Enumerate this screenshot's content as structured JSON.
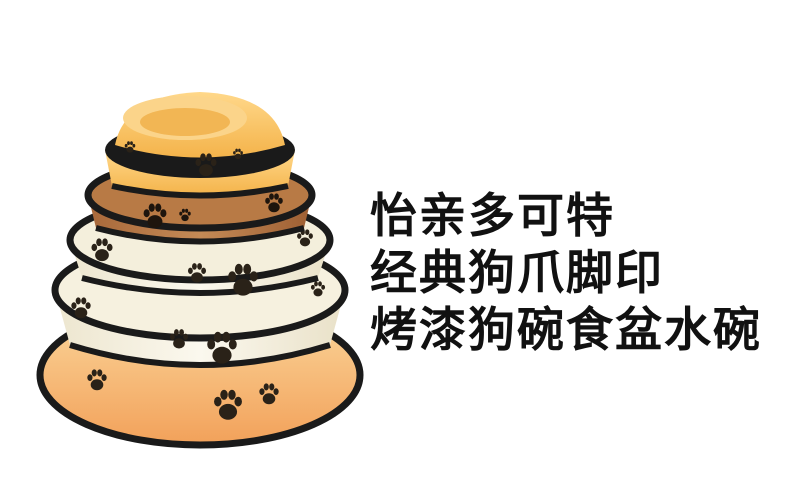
{
  "product_caption": {
    "lines": [
      "怡亲多可特",
      "经典狗爪脚印",
      "烤漆狗碗食盆水碗"
    ]
  },
  "image": {
    "subject": "stacked-pet-bowls",
    "bowl_colors": [
      "#f2a96a",
      "#f6f2e3",
      "#f4efdc",
      "#b87a45",
      "#f7b84a"
    ],
    "rim_color": "#1a1a1a",
    "paw_color": "#2a2218"
  }
}
